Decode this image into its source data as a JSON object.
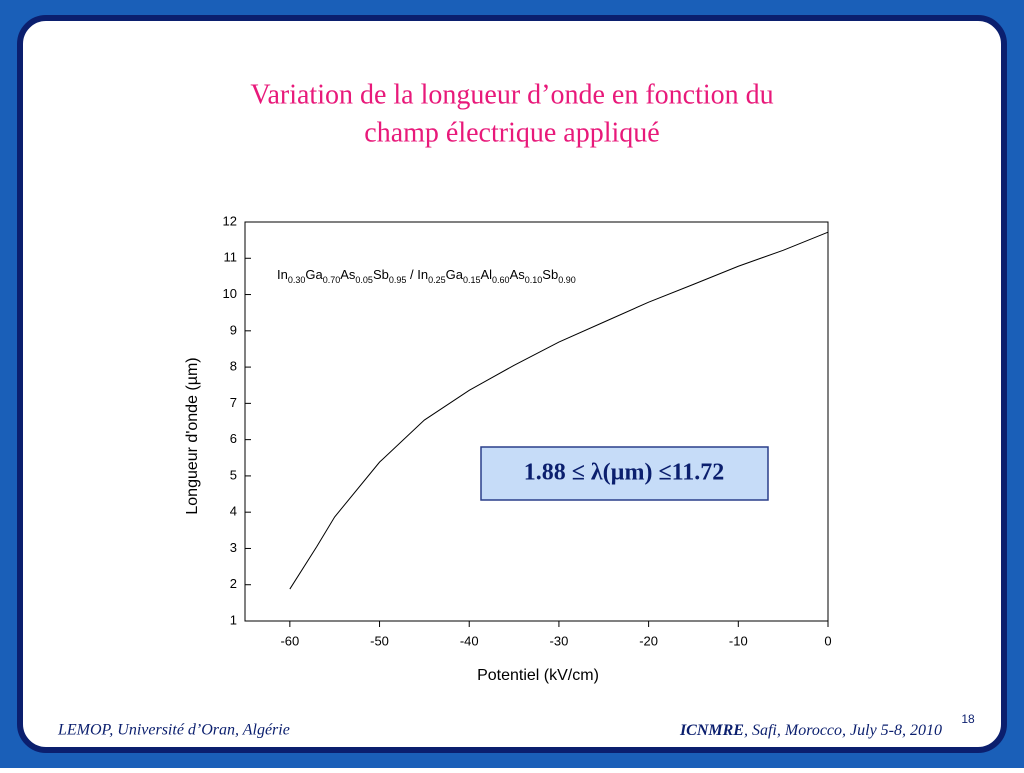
{
  "slide": {
    "title_lines": [
      "Variation de la longueur d’onde en fonction du",
      "champ électrique appliqué"
    ],
    "footer_left": "LEMOP, Université d’Oran, Algérie",
    "footer_right": [
      "ICNMRE",
      ", Safi, Morocco, July 5-8, 2010"
    ],
    "page_number": "18"
  },
  "chart_data": {
    "type": "line",
    "x_label": "Potentiel (kV/cm)",
    "y_label": "Longueur d'onde (µm)",
    "composition": [
      "In",
      "0.30",
      "Ga",
      "0.70",
      "As",
      "0.05",
      "Sb",
      "0.95",
      " / In",
      "0.25",
      "Ga",
      "0.15",
      "Al",
      "0.60",
      "As",
      "0.10",
      "Sb",
      "0.90"
    ],
    "annotation": "1.88 ≤ λ(µm) ≤11.72",
    "x": [
      -60,
      -57,
      -55,
      -50,
      -45,
      -40,
      -35,
      -30,
      -25,
      -20,
      -15,
      -10,
      -5,
      0
    ],
    "values": [
      1.88,
      3.05,
      3.87,
      5.38,
      6.54,
      7.36,
      8.05,
      8.69,
      9.24,
      9.79,
      10.28,
      10.78,
      11.22,
      11.72
    ],
    "color": "#000000",
    "xlim": [
      -65,
      0
    ],
    "ylim": [
      1,
      12
    ],
    "xticks": [
      -60,
      -50,
      -40,
      -30,
      -20,
      -10,
      0
    ],
    "yticks": [
      1,
      2,
      3,
      4,
      5,
      6,
      7,
      8,
      9,
      10,
      11,
      12
    ]
  }
}
